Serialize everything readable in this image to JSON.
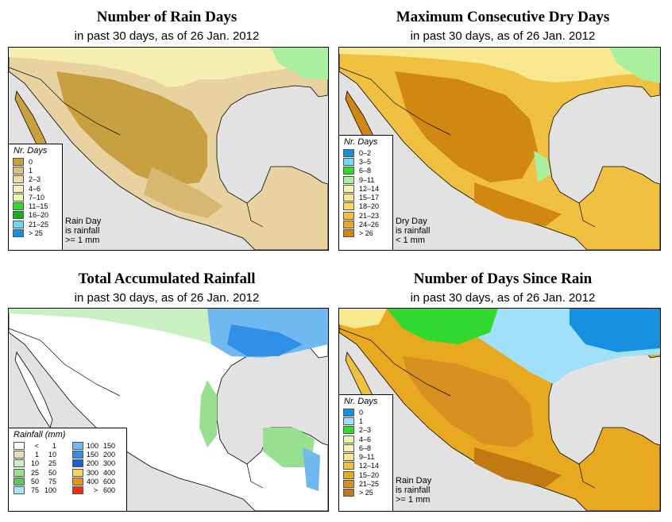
{
  "panels": {
    "rain_days": {
      "title": "Number of Rain Days",
      "subtitle": "in past 30 days, as of  26 Jan. 2012",
      "legend_title": "Nr. Days",
      "legend": [
        "0",
        "1",
        "2–3",
        "4–6",
        "7–10",
        "11–15",
        "16–20",
        "21–25",
        "> 25"
      ],
      "colors": [
        "#c8a040",
        "#dcc080",
        "#f0dca8",
        "#f8f0c0",
        "#e8fcb0",
        "#30d830",
        "#18b018",
        "#70d8f0",
        "#1890e0"
      ],
      "note": [
        "Rain Day",
        "is rainfall",
        ">= 1 mm"
      ]
    },
    "dry_days": {
      "title": "Maximum Consecutive Dry Days",
      "subtitle": "in past 30 days, as of  26 Jan. 2012",
      "legend_title": "Nr. Days",
      "legend": [
        "0–2",
        "3–5",
        "6–8",
        "9–11",
        "12–14",
        "15–17",
        "18–20",
        "21–23",
        "24–26",
        "> 26"
      ],
      "colors": [
        "#1890e0",
        "#70d8f0",
        "#30d830",
        "#a8f0a0",
        "#f8f4b0",
        "#f8e890",
        "#f8d860",
        "#f0c040",
        "#e8a820",
        "#d08810"
      ],
      "note": [
        "Dry Day",
        "is rainfall",
        "< 1 mm"
      ]
    },
    "rainfall": {
      "title": "Total Accumulated Rainfall",
      "subtitle": "in past 30 days, as of  26 Jan. 2012",
      "legend_title": "Rainfall (mm)",
      "legend_left": [
        [
          "<",
          "1"
        ],
        [
          "1",
          "10"
        ],
        [
          "10",
          "25"
        ],
        [
          "25",
          "50"
        ],
        [
          "50",
          "75"
        ],
        [
          "75",
          "100"
        ]
      ],
      "legend_right": [
        [
          "100",
          "150"
        ],
        [
          "150",
          "200"
        ],
        [
          "200",
          "300"
        ],
        [
          "300",
          "400"
        ],
        [
          "400",
          "600"
        ],
        [
          ">",
          "600"
        ]
      ],
      "colors_left": [
        "#ffffff",
        "#e8dcc0",
        "#c8f0c0",
        "#98e090",
        "#60c860",
        "#a8e8f8"
      ],
      "colors_right": [
        "#70b8f0",
        "#3090e8",
        "#1860d0",
        "#f8d060",
        "#f09020",
        "#f03010"
      ]
    },
    "since_rain": {
      "title": "Number of Days Since Rain",
      "subtitle": "in past 30 days, as of  26 Jan. 2012",
      "legend_title": "Nr. Days",
      "legend": [
        "0",
        "1",
        "2–3",
        "4–6",
        "6–8",
        "9–11",
        "12–14",
        "15–20",
        "21–25",
        "> 25"
      ],
      "colors": [
        "#1890e0",
        "#a0e0f8",
        "#30d830",
        "#e8fcb0",
        "#f8f4b0",
        "#f8e890",
        "#f0c040",
        "#e8a820",
        "#d89020",
        "#c07810"
      ],
      "note": [
        "Rain Day",
        "is rainfall",
        ">= 1 mm"
      ]
    }
  }
}
